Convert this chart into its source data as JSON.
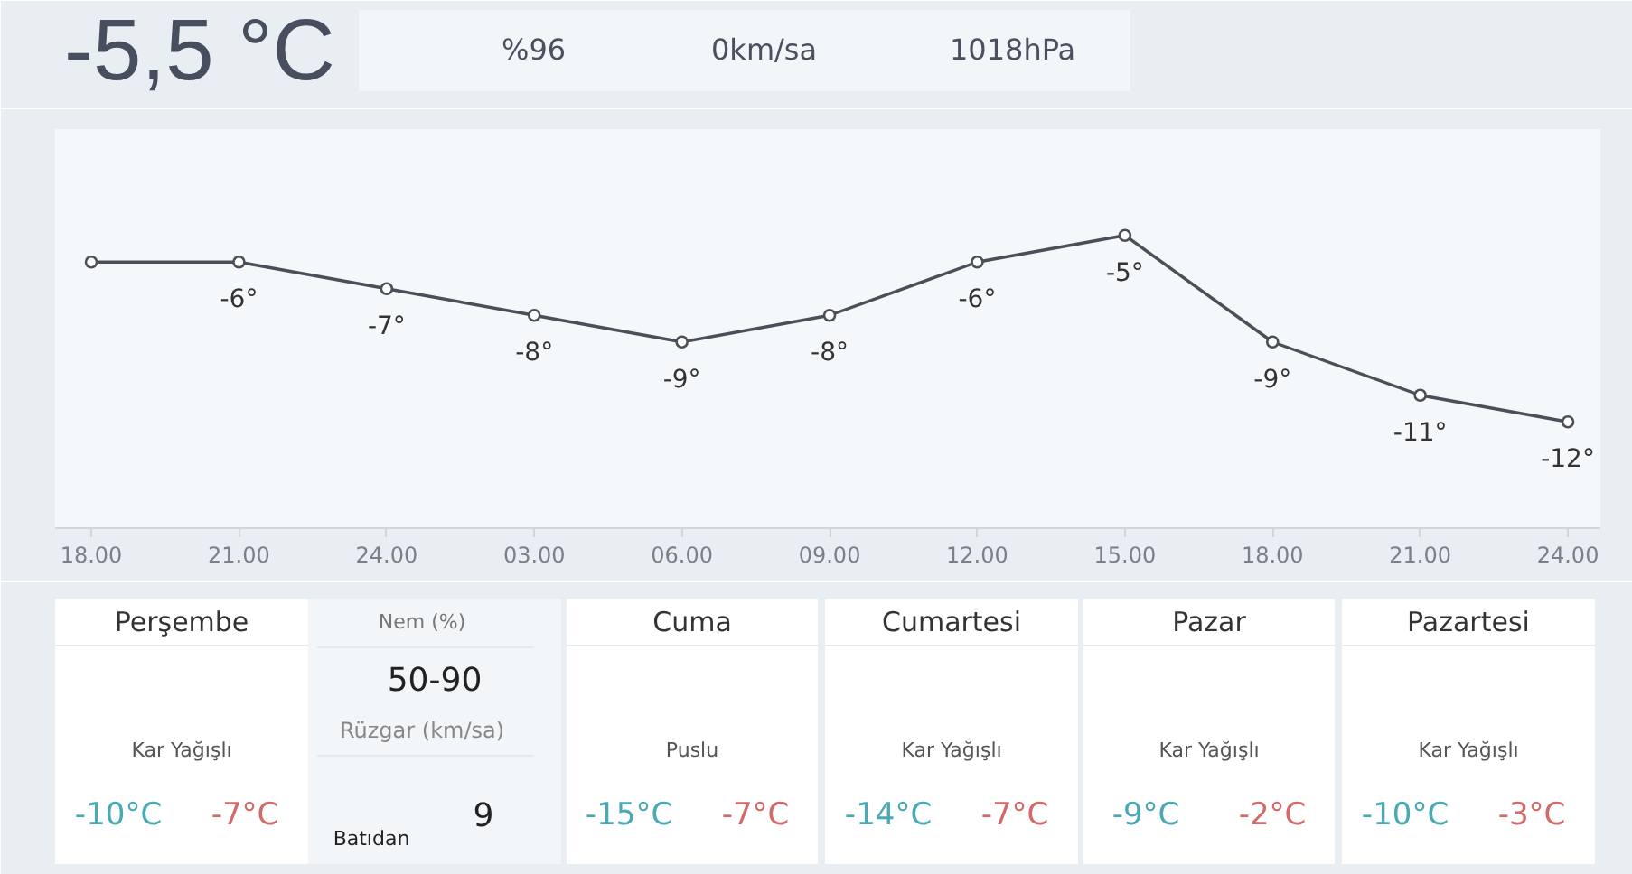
{
  "chart_data": [
    {
      "type": "other",
      "title": "-5,5 °C",
      "annotations": [
        "%96",
        "0km/sa",
        "1018hPa"
      ]
    },
    {
      "type": "line",
      "categories": [
        "18.00",
        "21.00",
        "24.00",
        "03.00",
        "06.00",
        "09.00",
        "12.00",
        "15.00",
        "18.00",
        "21.00",
        "24.00"
      ],
      "values": [
        -6,
        -6,
        -7,
        -8,
        -9,
        -8,
        -6,
        -5,
        -9,
        -11,
        -12
      ],
      "value_labels": [
        null,
        "-6°",
        "-7°",
        "-8°",
        "-9°",
        "-8°",
        "-6°",
        "-5°",
        "-9°",
        "-11°",
        "-12°"
      ],
      "color": "#4a4f5a",
      "marker": "circle",
      "tick_labels": "x"
    },
    {
      "type": "other",
      "title": "Perşembe",
      "annotations": [
        "Kar Yağışlı",
        "-10°C",
        "-7°C"
      ]
    },
    {
      "type": "other",
      "annotations": [
        "Nem (%)",
        "50-90",
        "Rüzgar (km/sa)",
        "9",
        "Batıdan"
      ]
    },
    {
      "type": "other",
      "title": "Cuma",
      "annotations": [
        "Puslu",
        "-15°C",
        "-7°C"
      ]
    },
    {
      "type": "other",
      "title": "Cumartesi",
      "annotations": [
        "Kar Yağışlı",
        "-14°C",
        "-7°C"
      ]
    },
    {
      "type": "other",
      "title": "Pazar",
      "annotations": [
        "Kar Yağışlı",
        "-9°C",
        "-2°C"
      ]
    },
    {
      "type": "other",
      "title": "Pazartesi",
      "annotations": [
        "Kar Yağışlı",
        "-10°C",
        "-3°C"
      ]
    }
  ]
}
